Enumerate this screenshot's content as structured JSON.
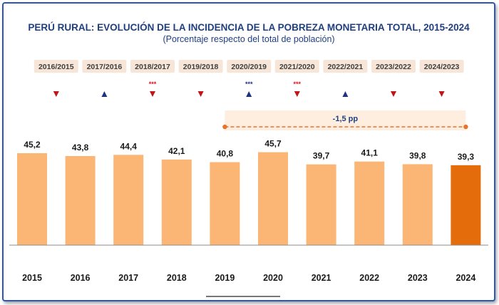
{
  "title": "PERÚ RURAL: EVOLUCIÓN DE LA INCIDENCIA DE LA POBREZA MONETARIA TOTAL, 2015-2024",
  "subtitle": "(Porcentaje respecto del total de población)",
  "colors": {
    "bar": "#fbb574",
    "bar_highlight": "#e46c0a",
    "arrow_down": "#c0151b",
    "arrow_up": "#1f3380",
    "sig_red": "#e3101d",
    "sig_blue": "#1f3380",
    "annotation_line": "#e8732a",
    "annotation_band": "#fdeee0",
    "period_box": "#f7e6d8"
  },
  "chart_data": {
    "type": "bar",
    "categories": [
      "2015",
      "2016",
      "2017",
      "2018",
      "2019",
      "2020",
      "2021",
      "2022",
      "2023",
      "2024"
    ],
    "values": [
      45.2,
      43.8,
      44.4,
      42.1,
      40.8,
      45.7,
      39.7,
      41.1,
      39.8,
      39.3
    ],
    "value_labels": [
      "45,2",
      "43,8",
      "44,4",
      "42,1",
      "40,8",
      "45,7",
      "39,7",
      "41,1",
      "39,8",
      "39,3"
    ],
    "highlight_index": 9,
    "ylim": [
      0,
      50
    ],
    "grid": false,
    "legend": "none",
    "periods": [
      {
        "label": "2016/2015",
        "direction": "down",
        "sig": ""
      },
      {
        "label": "2017/2016",
        "direction": "up",
        "sig": ""
      },
      {
        "label": "2018/2017",
        "direction": "down",
        "sig": "***"
      },
      {
        "label": "2019/2018",
        "direction": "down",
        "sig": ""
      },
      {
        "label": "2020/2019",
        "direction": "up",
        "sig": "***"
      },
      {
        "label": "2021/2020",
        "direction": "down",
        "sig": "***"
      },
      {
        "label": "2022/2021",
        "direction": "up",
        "sig": ""
      },
      {
        "label": "2023/2022",
        "direction": "down",
        "sig": ""
      },
      {
        "label": "2024/2023",
        "direction": "down",
        "sig": ""
      }
    ],
    "annotation": {
      "label": "-1,5 pp",
      "from": "2019",
      "to": "2024"
    }
  }
}
